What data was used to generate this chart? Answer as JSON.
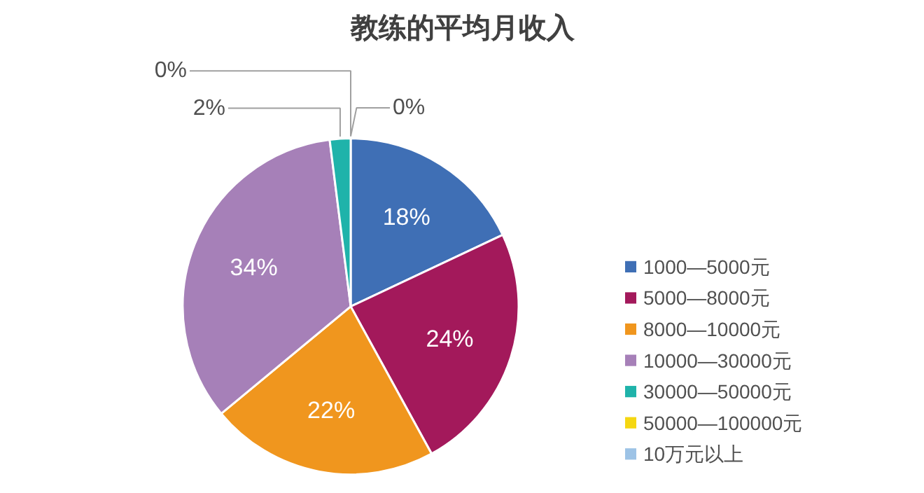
{
  "chart_data": {
    "type": "pie",
    "title": "教练的平均月收入",
    "categories": [
      "1000—5000元",
      "5000—8000元",
      "8000—10000元",
      "10000—30000元",
      "30000—50000元",
      "50000—100000元",
      "10万元以上"
    ],
    "values": [
      18,
      24,
      22,
      34,
      2,
      0,
      0
    ],
    "colors": [
      "#3f6fb5",
      "#a3195b",
      "#f0961e",
      "#a680b8",
      "#1fb3aa",
      "#f5d712",
      "#9dc3e6"
    ],
    "value_labels": [
      "18%",
      "24%",
      "22%",
      "34%",
      "2%",
      "0%",
      "0%"
    ],
    "legend": "right"
  }
}
